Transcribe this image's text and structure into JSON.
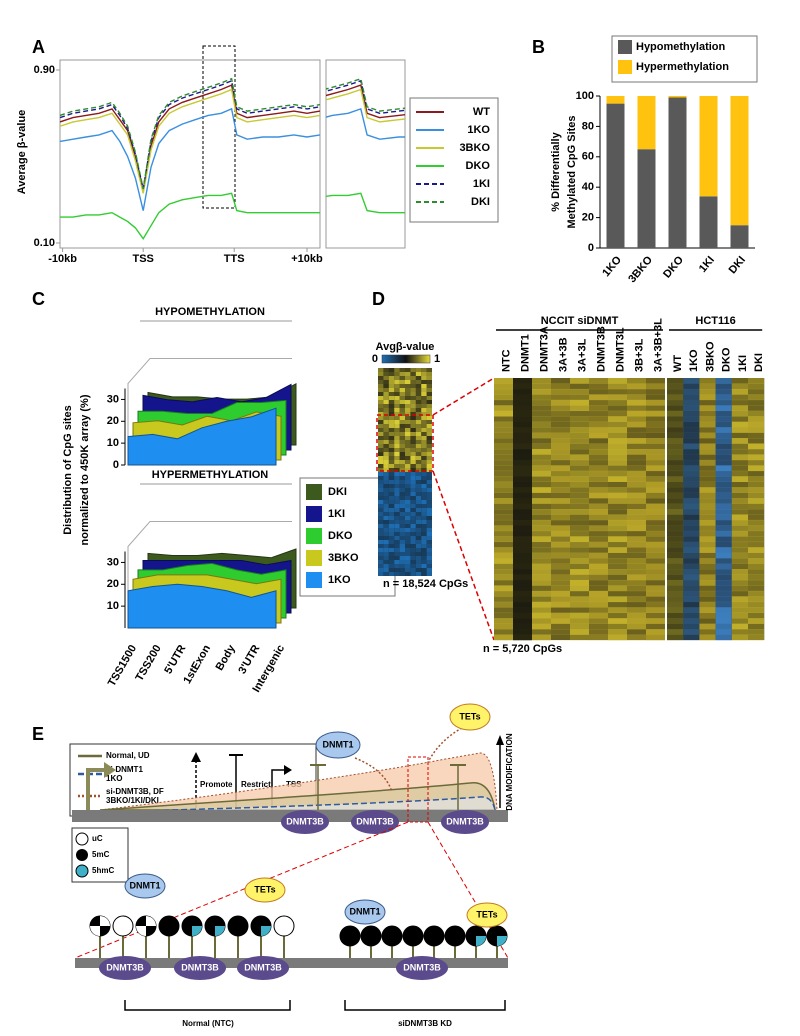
{
  "panel_labels": [
    "A",
    "B",
    "C",
    "D",
    "E"
  ],
  "chart_data": [
    {
      "type": "line",
      "ylabel": "Average β-value",
      "x": [
        0,
        5,
        10,
        15,
        20,
        23,
        26,
        29,
        32,
        35,
        38,
        42,
        47,
        52,
        57,
        62,
        66,
        68,
        72,
        78,
        84,
        90,
        95,
        100
      ],
      "xlim": [
        0,
        100
      ],
      "xticks": [
        {
          "value": 1,
          "label": "-10kb"
        },
        {
          "value": 32,
          "label": "TSS"
        },
        {
          "value": 67,
          "label": "TTS"
        },
        {
          "value": 95,
          "label": "+10kb"
        }
      ],
      "ylim": [
        0.1,
        0.9
      ],
      "yticks": [
        {
          "value": 0.1,
          "label": "0.10"
        },
        {
          "value": 0.9,
          "label": "0.90"
        }
      ],
      "inset_xlim": [
        55,
        80
      ],
      "series": [
        {
          "name": "WT",
          "color": "#8b1a1a",
          "dash": false,
          "values": [
            0.66,
            0.68,
            0.69,
            0.7,
            0.72,
            0.67,
            0.62,
            0.5,
            0.34,
            0.55,
            0.66,
            0.72,
            0.75,
            0.77,
            0.79,
            0.81,
            0.83,
            0.7,
            0.68,
            0.69,
            0.7,
            0.71,
            0.7,
            0.71
          ]
        },
        {
          "name": "1KO",
          "color": "#3a8fe0",
          "dash": false,
          "values": [
            0.57,
            0.58,
            0.59,
            0.6,
            0.62,
            0.57,
            0.5,
            0.4,
            0.25,
            0.45,
            0.56,
            0.62,
            0.65,
            0.67,
            0.69,
            0.7,
            0.72,
            0.6,
            0.58,
            0.59,
            0.59,
            0.6,
            0.59,
            0.6
          ]
        },
        {
          "name": "3BKO",
          "color": "#c8c832",
          "dash": false,
          "values": [
            0.64,
            0.66,
            0.67,
            0.68,
            0.7,
            0.65,
            0.6,
            0.48,
            0.33,
            0.53,
            0.64,
            0.7,
            0.73,
            0.75,
            0.77,
            0.79,
            0.81,
            0.68,
            0.66,
            0.67,
            0.68,
            0.69,
            0.68,
            0.69
          ]
        },
        {
          "name": "DKO",
          "color": "#33cc33",
          "dash": false,
          "values": [
            0.22,
            0.22,
            0.23,
            0.23,
            0.24,
            0.22,
            0.2,
            0.17,
            0.12,
            0.18,
            0.24,
            0.28,
            0.3,
            0.31,
            0.32,
            0.32,
            0.33,
            0.25,
            0.24,
            0.24,
            0.24,
            0.24,
            0.24,
            0.24
          ]
        },
        {
          "name": "1KI",
          "color": "#1a1a8c",
          "dash": true,
          "values": [
            0.68,
            0.7,
            0.71,
            0.72,
            0.74,
            0.69,
            0.63,
            0.51,
            0.35,
            0.57,
            0.68,
            0.74,
            0.77,
            0.79,
            0.81,
            0.83,
            0.85,
            0.72,
            0.7,
            0.71,
            0.72,
            0.73,
            0.72,
            0.73
          ]
        },
        {
          "name": "DKI",
          "color": "#2e8b2e",
          "dash": true,
          "values": [
            0.69,
            0.71,
            0.72,
            0.73,
            0.75,
            0.7,
            0.64,
            0.52,
            0.35,
            0.58,
            0.69,
            0.75,
            0.78,
            0.8,
            0.82,
            0.84,
            0.86,
            0.73,
            0.71,
            0.72,
            0.73,
            0.74,
            0.73,
            0.74
          ]
        }
      ]
    },
    {
      "type": "stacked_bar",
      "ylabel": [
        "% Differentially",
        "Methylated CpG Sites"
      ],
      "categories": [
        "1KO",
        "3BKO",
        "DKO",
        "1KI",
        "DKI"
      ],
      "ylim": [
        0,
        100
      ],
      "yticks": [
        0,
        20,
        40,
        60,
        80,
        100
      ],
      "series": [
        {
          "name": "Hypomethylation",
          "color": "#595959",
          "values": [
            95,
            65,
            99,
            34,
            15
          ]
        },
        {
          "name": "Hypermethylation",
          "color": "#ffc20e",
          "values": [
            5,
            35,
            1,
            66,
            85
          ]
        }
      ]
    },
    {
      "type": "area3d",
      "ylabel": [
        "Distribution of CpG sites",
        "normalized to 450K array (%)"
      ],
      "categories": [
        "TSS1500",
        "TSS200",
        "5'UTR",
        "1stExon",
        "Body",
        "3'UTR",
        "Intergenic"
      ],
      "ylim": [
        0,
        35
      ],
      "series": [
        {
          "name": "DKI",
          "color": "#3d5a1e"
        },
        {
          "name": "1KI",
          "color": "#14148c"
        },
        {
          "name": "DKO",
          "color": "#2ecc2e"
        },
        {
          "name": "3BKO",
          "color": "#c8c81e"
        },
        {
          "name": "1KO",
          "color": "#1e8ff0"
        }
      ],
      "subplots": [
        {
          "title": "HYPOMETHYLATION",
          "yticks": [
            0,
            10,
            20,
            30
          ],
          "values": [
            [
              24,
              22,
              22,
              21,
              21,
              22,
              28
            ],
            [
              25,
              23,
              22,
              24,
              22,
              24,
              30
            ],
            [
              20,
              20,
              19,
              19,
              24,
              24,
              25
            ],
            [
              17,
              18,
              16,
              20,
              18,
              22,
              20
            ],
            [
              13,
              14,
              12,
              17,
              20,
              22,
              26
            ]
          ]
        },
        {
          "title": "HYPERMETHYLATION",
          "yticks": [
            10,
            20,
            30
          ],
          "values": [
            [
              25,
              24,
              24,
              25,
              24,
              23,
              27
            ],
            [
              24,
              24,
              24,
              24,
              24,
              22,
              24
            ],
            [
              22,
              22,
              24,
              25,
              22,
              20,
              22
            ],
            [
              20,
              22,
              22,
              22,
              20,
              18,
              20
            ],
            [
              17,
              19,
              20,
              19,
              17,
              14,
              17
            ]
          ]
        }
      ]
    }
  ],
  "heatmap": {
    "scale_title": "Avgβ-value",
    "scale_ticks": [
      0,
      1
    ],
    "scale_colors": [
      "#1f6fb5",
      "#111111",
      "#e8dc3a"
    ],
    "left_count": "n = 18,524 CpGs",
    "right_count": "n = 5,720 CpGs",
    "groups": [
      {
        "label": "NCCIT siDNMT",
        "columns": [
          {
            "label": "NTC",
            "color": "#c4b22c"
          },
          {
            "label": "DNMT1",
            "color": "#2a2810"
          },
          {
            "label": "DNMT3A",
            "color": "#c4b22c"
          },
          {
            "label": "3A+3B",
            "color": "#bda92a"
          },
          {
            "label": "3A+3L",
            "color": "#c4b22c"
          },
          {
            "label": "DNMT3B",
            "color": "#bda92a"
          },
          {
            "label": "DNMT3L",
            "color": "#c4b22c"
          },
          {
            "label": "3B+3L",
            "color": "#bda92a"
          },
          {
            "label": "3A+3B+3L",
            "color": "#b8a428"
          }
        ]
      },
      {
        "label": "HCT116",
        "columns": [
          {
            "label": "WT",
            "color": "#6f6a20"
          },
          {
            "label": "1KO",
            "color": "#2f5a80"
          },
          {
            "label": "3BKO",
            "color": "#b8a428"
          },
          {
            "label": "DKO",
            "color": "#3d7fc0"
          },
          {
            "label": "1KI",
            "color": "#c4b22c"
          },
          {
            "label": "DKI",
            "color": "#c4b22c"
          }
        ]
      }
    ]
  },
  "diagram": {
    "line_legend": [
      "Normal, UD",
      [
        "si-DNMT1",
        "1KO"
      ],
      [
        "si-DNMT3B, DF",
        "3BKO/1KI/DKI"
      ]
    ],
    "arrow_legend": [
      "Promote",
      "Restrict",
      "TSS"
    ],
    "top_enzymes": [
      "DNMT1",
      "TETs"
    ],
    "axis_label": "DNA MODIFICATION",
    "top_binders": [
      "DNMT3B",
      "DNMT3B",
      "DNMT3B"
    ],
    "marks_legend": [
      "uC",
      "5mC",
      "5hmC"
    ],
    "normal": {
      "enzymes": [
        "DNMT1",
        "TETs"
      ],
      "binders": [
        "DNMT3B",
        "DNMT3B",
        "DNMT3B"
      ],
      "label": "Normal (NTC)"
    },
    "knockdown": {
      "enzymes": [
        "DNMT1",
        "TETs"
      ],
      "binders": [
        "DNMT3B"
      ],
      "label": "siDNMT3B KD"
    }
  }
}
